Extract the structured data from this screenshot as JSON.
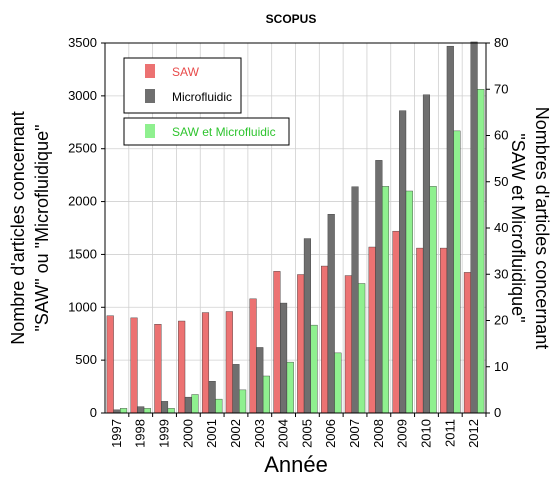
{
  "chart_data": {
    "type": "bar",
    "title": "SCOPUS",
    "xlabel": "Année",
    "ylabel_left": [
      "Nombre d'articles concernant",
      "\"SAW\" ou \"Microfluidique\""
    ],
    "ylabel_right": [
      "Nombres d'articles concernant",
      "\"SAW et Microfluidique\""
    ],
    "categories": [
      "1997",
      "1998",
      "1999",
      "2000",
      "2001",
      "2002",
      "2003",
      "2004",
      "2005",
      "2006",
      "2007",
      "2008",
      "2009",
      "2010",
      "2011",
      "2012"
    ],
    "ylim_left": [
      0,
      3500
    ],
    "yticks_left": [
      0,
      500,
      1000,
      1500,
      2000,
      2500,
      3000,
      3500
    ],
    "ylim_right": [
      0,
      80
    ],
    "yticks_right": [
      0,
      10,
      20,
      30,
      40,
      50,
      60,
      70,
      80
    ],
    "grid": true,
    "series": [
      {
        "name": "SAW",
        "axis": "left",
        "color": "#ec7272",
        "values": [
          920,
          900,
          840,
          870,
          950,
          960,
          1080,
          1340,
          1310,
          1390,
          1300,
          1570,
          1720,
          1560,
          1560,
          1330
        ]
      },
      {
        "name": "Microfluidic",
        "axis": "left",
        "color": "#6f6f6f",
        "values": [
          30,
          60,
          110,
          150,
          300,
          460,
          620,
          1040,
          1650,
          1880,
          2140,
          2390,
          2860,
          3010,
          3470,
          3510
        ]
      },
      {
        "name": "SAW et Microfluidic",
        "axis": "right",
        "color": "#8ff08f",
        "values": [
          1,
          1,
          1,
          4,
          3,
          5,
          8,
          11,
          19,
          13,
          28,
          49,
          48,
          49,
          61,
          70
        ]
      }
    ],
    "legend_placement": "top-left"
  }
}
